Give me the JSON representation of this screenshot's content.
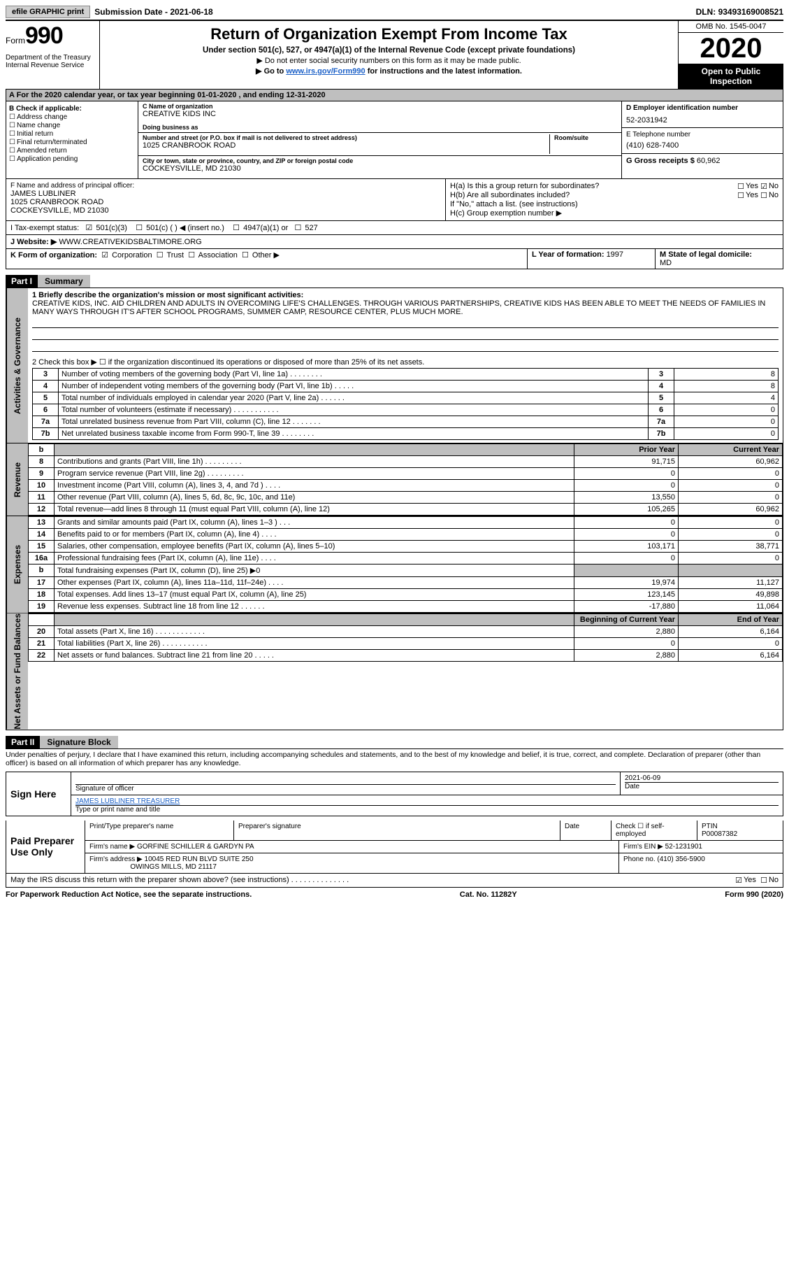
{
  "top": {
    "efile": "efile GRAPHIC print",
    "sub_date_label": "Submission Date - ",
    "sub_date": "2021-06-18",
    "dln_label": "DLN: ",
    "dln": "93493169008521"
  },
  "header": {
    "form_word": "Form",
    "form_num": "990",
    "dept": "Department of the Treasury\nInternal Revenue Service",
    "title": "Return of Organization Exempt From Income Tax",
    "subtitle": "Under section 501(c), 527, or 4947(a)(1) of the Internal Revenue Code (except private foundations)",
    "note1": "▶ Do not enter social security numbers on this form as it may be made public.",
    "note2_pre": "▶ Go to ",
    "note2_link": "www.irs.gov/Form990",
    "note2_post": " for instructions and the latest information.",
    "omb": "OMB No. 1545-0047",
    "year": "2020",
    "inspection": "Open to Public Inspection"
  },
  "calendar": "A For the 2020 calendar year, or tax year beginning 01-01-2020    , and ending 12-31-2020",
  "boxB": {
    "title": "B Check if applicable:",
    "items": [
      "Address change",
      "Name change",
      "Initial return",
      "Final return/terminated",
      "Amended return",
      "Application pending"
    ]
  },
  "boxC": {
    "name_label": "C Name of organization",
    "name": "CREATIVE KIDS INC",
    "dba_label": "Doing business as",
    "addr_label": "Number and street (or P.O. box if mail is not delivered to street address)",
    "addr": "1025 CRANBROOK ROAD",
    "room_label": "Room/suite",
    "city_label": "City or town, state or province, country, and ZIP or foreign postal code",
    "city": "COCKEYSVILLE, MD  21030"
  },
  "boxD": {
    "label": "D Employer identification number",
    "val": "52-2031942"
  },
  "boxE": {
    "label": "E Telephone number",
    "val": "(410) 628-7400"
  },
  "boxG": {
    "label": "G Gross receipts $ ",
    "val": "60,962"
  },
  "boxF": {
    "label": "F  Name and address of principal officer:",
    "name": "JAMES LUBLINER",
    "addr1": "1025 CRANBROOK ROAD",
    "addr2": "COCKEYSVILLE, MD  21030"
  },
  "boxH": {
    "a": "H(a)  Is this a group return for subordinates?",
    "a_yes": "Yes",
    "a_no": "No",
    "b": "H(b)  Are all subordinates included?",
    "b_note": "If \"No,\" attach a list. (see instructions)",
    "c": "H(c)  Group exemption number ▶"
  },
  "rowI": {
    "label": "I   Tax-exempt status:",
    "opts": [
      "501(c)(3)",
      "501(c) (  ) ◀ (insert no.)",
      "4947(a)(1) or",
      "527"
    ]
  },
  "rowJ": {
    "label": "J   Website: ▶",
    "val": "WWW.CREATIVEKIDSBALTIMORE.ORG"
  },
  "rowK": {
    "label": "K Form of organization:",
    "opts": [
      "Corporation",
      "Trust",
      "Association",
      "Other ▶"
    ]
  },
  "rowL": {
    "label": "L Year of formation: ",
    "val": "1997"
  },
  "rowM": {
    "label": "M State of legal domicile: ",
    "val": "MD"
  },
  "part1": {
    "tag": "Part I",
    "title": "Summary"
  },
  "mission": {
    "label": "1   Briefly describe the organization's mission or most significant activities:",
    "text": "CREATIVE KIDS, INC. AID CHILDREN AND ADULTS IN OVERCOMING LIFE'S CHALLENGES. THROUGH VARIOUS PARTNERSHIPS, CREATIVE KIDS HAS BEEN ABLE TO MEET THE NEEDS OF FAMILIES IN MANY WAYS THROUGH IT'S AFTER SCHOOL PROGRAMS, SUMMER CAMP, RESOURCE CENTER, PLUS MUCH MORE."
  },
  "line2": "2    Check this box ▶ ☐  if the organization discontinued its operations or disposed of more than 25% of its net assets.",
  "sideA": "Activities & Governance",
  "sideR": "Revenue",
  "sideE": "Expenses",
  "sideN": "Net Assets or Fund Balances",
  "govLines": [
    {
      "n": "3",
      "d": "Number of voting members of the governing body (Part VI, line 1a)   .    .    .    .    .    .    .    .",
      "v": "8"
    },
    {
      "n": "4",
      "d": "Number of independent voting members of the governing body (Part VI, line 1b)   .    .    .    .    .",
      "v": "8"
    },
    {
      "n": "5",
      "d": "Total number of individuals employed in calendar year 2020 (Part V, line 2a)   .    .    .    .    .    .",
      "v": "4"
    },
    {
      "n": "6",
      "d": "Total number of volunteers (estimate if necessary)    .    .    .    .    .    .    .    .    .    .    .",
      "v": "0"
    },
    {
      "n": "7a",
      "d": "Total unrelated business revenue from Part VIII, column (C), line 12    .    .    .    .    .    .    .",
      "v": "0"
    },
    {
      "n": "7b",
      "d": "Net unrelated business taxable income from Form 990-T, line 39    .    .    .    .    .    .    .    .",
      "v": "0"
    }
  ],
  "revHdr": {
    "b": "b",
    "prior": "Prior Year",
    "curr": "Current Year"
  },
  "revLines": [
    {
      "n": "8",
      "d": "Contributions and grants (Part VIII, line 1h)    .    .    .    .    .    .    .    .    .",
      "p": "91,715",
      "c": "60,962"
    },
    {
      "n": "9",
      "d": "Program service revenue (Part VIII, line 2g)    .    .    .    .    .    .    .    .    .",
      "p": "0",
      "c": "0"
    },
    {
      "n": "10",
      "d": "Investment income (Part VIII, column (A), lines 3, 4, and 7d )    .    .    .    .",
      "p": "0",
      "c": "0"
    },
    {
      "n": "11",
      "d": "Other revenue (Part VIII, column (A), lines 5, 6d, 8c, 9c, 10c, and 11e)",
      "p": "13,550",
      "c": "0"
    },
    {
      "n": "12",
      "d": "Total revenue—add lines 8 through 11 (must equal Part VIII, column (A), line 12)",
      "p": "105,265",
      "c": "60,962"
    }
  ],
  "expLines": [
    {
      "n": "13",
      "d": "Grants and similar amounts paid (Part IX, column (A), lines 1–3 )  .    .    .",
      "p": "0",
      "c": "0"
    },
    {
      "n": "14",
      "d": "Benefits paid to or for members (Part IX, column (A), line 4)  .    .    .    .",
      "p": "0",
      "c": "0"
    },
    {
      "n": "15",
      "d": "Salaries, other compensation, employee benefits (Part IX, column (A), lines 5–10)",
      "p": "103,171",
      "c": "38,771"
    },
    {
      "n": "16a",
      "d": "Professional fundraising fees (Part IX, column (A), line 11e)   .    .    .    .",
      "p": "0",
      "c": "0"
    },
    {
      "n": "b",
      "d": "Total fundraising expenses (Part IX, column (D), line 25) ▶0",
      "p": "",
      "c": "",
      "shade": true
    },
    {
      "n": "17",
      "d": "Other expenses (Part IX, column (A), lines 11a–11d, 11f–24e)   .    .    .    .",
      "p": "19,974",
      "c": "11,127"
    },
    {
      "n": "18",
      "d": "Total expenses. Add lines 13–17 (must equal Part IX, column (A), line 25)",
      "p": "123,145",
      "c": "49,898"
    },
    {
      "n": "19",
      "d": "Revenue less expenses. Subtract line 18 from line 12   .    .    .    .    .    .",
      "p": "-17,880",
      "c": "11,064"
    }
  ],
  "netHdr": {
    "prior": "Beginning of Current Year",
    "curr": "End of Year"
  },
  "netLines": [
    {
      "n": "20",
      "d": "Total assets (Part X, line 16)  .     .    .    .    .    .    .    .    .    .    .    .",
      "p": "2,880",
      "c": "6,164"
    },
    {
      "n": "21",
      "d": "Total liabilities (Part X, line 26)   .    .    .    .    .    .    .    .    .    .    .",
      "p": "0",
      "c": "0"
    },
    {
      "n": "22",
      "d": "Net assets or fund balances. Subtract line 21 from line 20  .    .    .    .    .",
      "p": "2,880",
      "c": "6,164"
    }
  ],
  "part2": {
    "tag": "Part II",
    "title": "Signature Block"
  },
  "sigDecl": "Under penalties of perjury, I declare that I have examined this return, including accompanying schedules and statements, and to the best of my knowledge and belief, it is true, correct, and complete. Declaration of preparer (other than officer) is based on all information of which preparer has any knowledge.",
  "sign": {
    "here": "Sign Here",
    "sig_label": "Signature of officer",
    "date": "2021-06-09",
    "date_label": "Date",
    "name": "JAMES LUBLINER  TREASURER",
    "name_label": "Type or print name and title"
  },
  "paid": {
    "here": "Paid Preparer Use Only",
    "h1": "Print/Type preparer's name",
    "h2": "Preparer's signature",
    "h3": "Date",
    "h4": "Check ☐ if self-employed",
    "h5": "PTIN",
    "ptin": "P00087382",
    "firm_label": "Firm's name      ▶",
    "firm": "GORFINE SCHILLER & GARDYN PA",
    "ein_label": "Firm's EIN ▶",
    "ein": "52-1231901",
    "addr_label": "Firm's address ▶",
    "addr1": "10045 RED RUN BLVD SUITE 250",
    "addr2": "OWINGS MILLS, MD  21117",
    "phone_label": "Phone no. ",
    "phone": "(410) 356-5900"
  },
  "discuss": "May the IRS discuss this return with the preparer shown above? (see instructions)    .    .    .    .    .    .    .    .    .    .    .    .    .    .",
  "discuss_yes": "Yes",
  "discuss_no": "No",
  "footer": {
    "left": "For Paperwork Reduction Act Notice, see the separate instructions.",
    "mid": "Cat. No. 11282Y",
    "right": "Form 990 (2020)"
  }
}
